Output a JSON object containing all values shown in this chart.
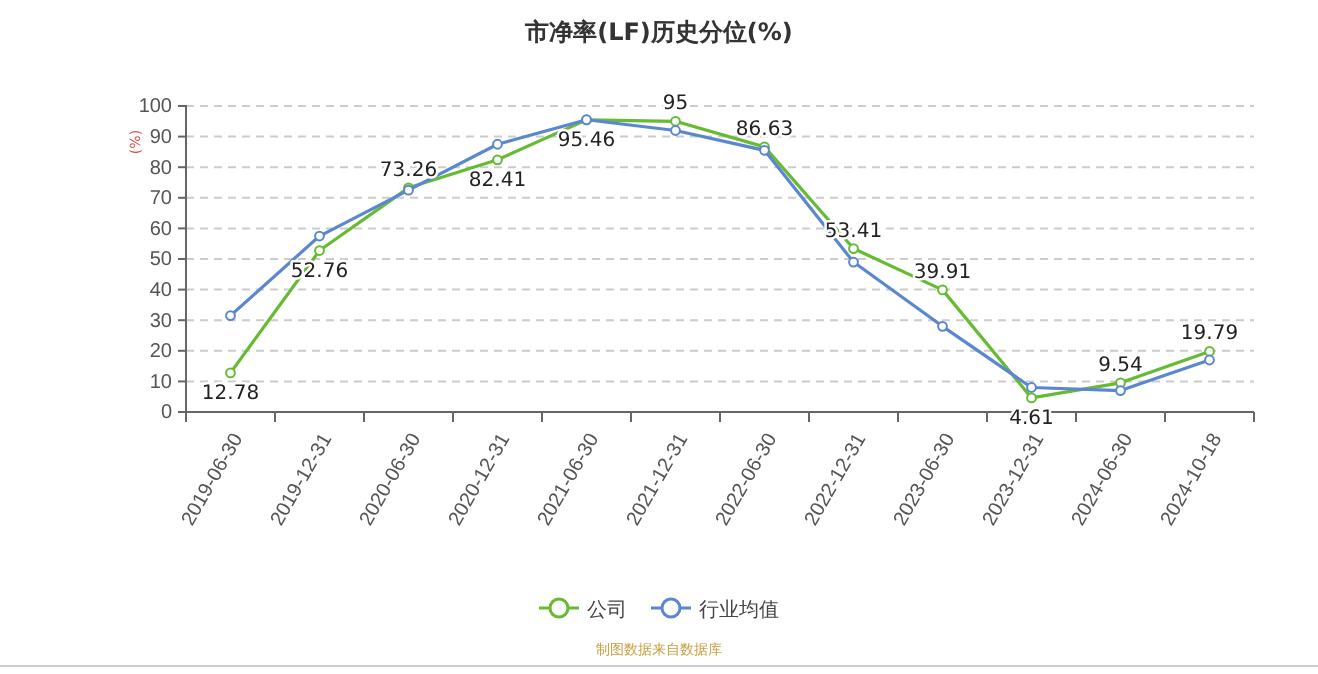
{
  "chart_data": {
    "type": "line",
    "title": "市净率(LF)历史分位(%)",
    "ylabel": "(%)",
    "categories": [
      "2019-06-30",
      "2019-12-31",
      "2020-06-30",
      "2020-12-31",
      "2021-06-30",
      "2021-12-31",
      "2022-06-30",
      "2022-12-31",
      "2023-06-30",
      "2023-12-31",
      "2024-06-30",
      "2024-10-18"
    ],
    "series": [
      {
        "name": "公司",
        "color": "#66bb33",
        "values": [
          12.78,
          52.76,
          73.26,
          82.41,
          95.46,
          95,
          86.63,
          53.41,
          39.91,
          4.61,
          9.54,
          19.79
        ],
        "value_labels": [
          "12.78",
          "52.76",
          "73.26",
          "82.41",
          "95.46",
          "95",
          "86.63",
          "53.41",
          "39.91",
          "4.61",
          "9.54",
          "19.79"
        ]
      },
      {
        "name": "行业均值",
        "color": "#5b87d0",
        "values": [
          31.5,
          57.5,
          72.5,
          87.5,
          95.5,
          92,
          85.5,
          49,
          28,
          8,
          7,
          17
        ]
      }
    ],
    "ylim": [
      0,
      100
    ],
    "yticks": [
      0,
      10,
      20,
      30,
      40,
      50,
      60,
      70,
      80,
      90,
      100
    ],
    "grid": "y",
    "legend": "bottom",
    "marker": "circle",
    "line_style": "solid",
    "annotations": [
      "制图数据来自数据库"
    ]
  }
}
